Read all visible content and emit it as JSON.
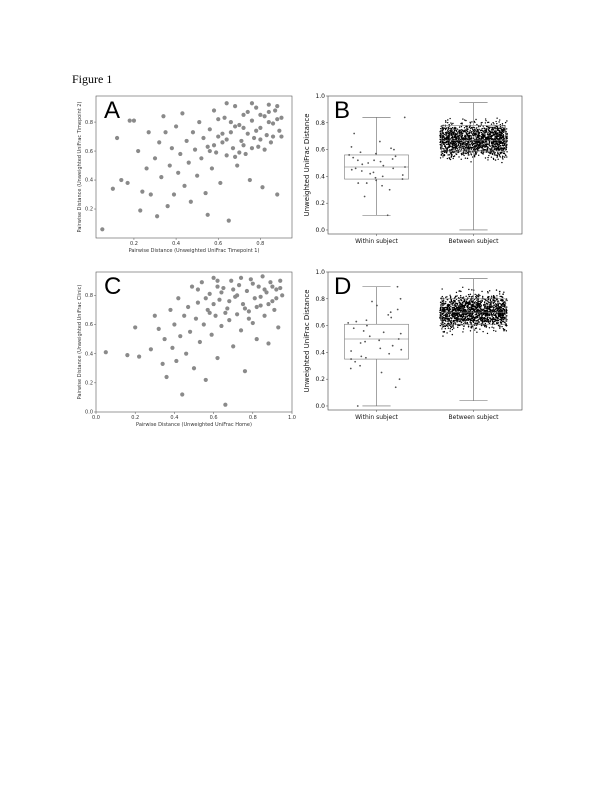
{
  "figure": {
    "title": "Figure 1"
  },
  "chart_data": [
    {
      "panel": "A",
      "type": "scatter",
      "xlabel": "Pairwise Distance (Unweighted UniFrac Timepoint 1)",
      "ylabel": "Pairwise Distance (Unweighted UniFrac Timepoint 2)",
      "xlim": [
        0.02,
        0.95
      ],
      "ylim": [
        0.0,
        0.98
      ],
      "xticks": [
        "0.2",
        "0.4",
        "0.6",
        "0.8"
      ],
      "yticks": [
        "0.2",
        "0.4",
        "0.6",
        "0.8"
      ],
      "color": "#8a8a8a",
      "points": [
        [
          0.05,
          0.06
        ],
        [
          0.1,
          0.34
        ],
        [
          0.12,
          0.69
        ],
        [
          0.14,
          0.4
        ],
        [
          0.17,
          0.38
        ],
        [
          0.18,
          0.81
        ],
        [
          0.2,
          0.81
        ],
        [
          0.22,
          0.6
        ],
        [
          0.23,
          0.19
        ],
        [
          0.24,
          0.32
        ],
        [
          0.26,
          0.48
        ],
        [
          0.27,
          0.73
        ],
        [
          0.28,
          0.3
        ],
        [
          0.3,
          0.55
        ],
        [
          0.31,
          0.15
        ],
        [
          0.32,
          0.66
        ],
        [
          0.33,
          0.42
        ],
        [
          0.34,
          0.84
        ],
        [
          0.35,
          0.73
        ],
        [
          0.36,
          0.22
        ],
        [
          0.37,
          0.5
        ],
        [
          0.38,
          0.62
        ],
        [
          0.39,
          0.3
        ],
        [
          0.4,
          0.77
        ],
        [
          0.41,
          0.45
        ],
        [
          0.42,
          0.58
        ],
        [
          0.43,
          0.86
        ],
        [
          0.44,
          0.36
        ],
        [
          0.45,
          0.67
        ],
        [
          0.46,
          0.52
        ],
        [
          0.47,
          0.25
        ],
        [
          0.48,
          0.73
        ],
        [
          0.49,
          0.61
        ],
        [
          0.5,
          0.43
        ],
        [
          0.51,
          0.8
        ],
        [
          0.52,
          0.55
        ],
        [
          0.53,
          0.69
        ],
        [
          0.54,
          0.31
        ],
        [
          0.55,
          0.63
        ],
        [
          0.55,
          0.16
        ],
        [
          0.56,
          0.75
        ],
        [
          0.57,
          0.48
        ],
        [
          0.58,
          0.88
        ],
        [
          0.59,
          0.59
        ],
        [
          0.6,
          0.7
        ],
        [
          0.61,
          0.38
        ],
        [
          0.62,
          0.66
        ],
        [
          0.63,
          0.83
        ],
        [
          0.64,
          0.57
        ],
        [
          0.65,
          0.12
        ],
        [
          0.66,
          0.73
        ],
        [
          0.67,
          0.62
        ],
        [
          0.68,
          0.91
        ],
        [
          0.69,
          0.5
        ],
        [
          0.7,
          0.78
        ],
        [
          0.71,
          0.67
        ],
        [
          0.72,
          0.85
        ],
        [
          0.73,
          0.58
        ],
        [
          0.74,
          0.72
        ],
        [
          0.75,
          0.4
        ],
        [
          0.76,
          0.81
        ],
        [
          0.77,
          0.69
        ],
        [
          0.78,
          0.9
        ],
        [
          0.79,
          0.63
        ],
        [
          0.8,
          0.76
        ],
        [
          0.81,
          0.35
        ],
        [
          0.82,
          0.84
        ],
        [
          0.83,
          0.71
        ],
        [
          0.84,
          0.92
        ],
        [
          0.85,
          0.66
        ],
        [
          0.86,
          0.79
        ],
        [
          0.87,
          0.88
        ],
        [
          0.88,
          0.3
        ],
        [
          0.89,
          0.74
        ],
        [
          0.9,
          0.83
        ],
        [
          0.58,
          0.64
        ],
        [
          0.62,
          0.72
        ],
        [
          0.66,
          0.8
        ],
        [
          0.7,
          0.59
        ],
        [
          0.74,
          0.87
        ],
        [
          0.78,
          0.74
        ],
        [
          0.82,
          0.61
        ],
        [
          0.86,
          0.7
        ],
        [
          0.64,
          0.93
        ],
        [
          0.68,
          0.77
        ],
        [
          0.72,
          0.64
        ],
        [
          0.76,
          0.93
        ],
        [
          0.8,
          0.85
        ],
        [
          0.84,
          0.8
        ],
        [
          0.88,
          0.82
        ],
        [
          0.56,
          0.6
        ],
        [
          0.6,
          0.82
        ],
        [
          0.64,
          0.68
        ],
        [
          0.68,
          0.56
        ],
        [
          0.72,
          0.76
        ],
        [
          0.76,
          0.62
        ],
        [
          0.8,
          0.68
        ],
        [
          0.84,
          0.87
        ],
        [
          0.88,
          0.91
        ],
        [
          0.9,
          0.7
        ]
      ]
    },
    {
      "panel": "B",
      "type": "box",
      "ylabel": "Unweighted UniFrac Distance",
      "ylim": [
        -0.03,
        1.0
      ],
      "yticks": [
        "0.0",
        "0.2",
        "0.4",
        "0.6",
        "0.8",
        "1.0"
      ],
      "categories": [
        "Within subject",
        "Between subject"
      ],
      "boxes": [
        {
          "q1": 0.38,
          "median": 0.47,
          "q3": 0.56,
          "whisker_low": 0.11,
          "whisker_high": 0.84
        },
        {
          "q1": 0.59,
          "median": 0.67,
          "q3": 0.78,
          "whisker_low": 0.0,
          "whisker_high": 0.95
        }
      ],
      "within_points": [
        0.11,
        0.25,
        0.3,
        0.33,
        0.35,
        0.37,
        0.38,
        0.4,
        0.41,
        0.42,
        0.43,
        0.44,
        0.45,
        0.46,
        0.47,
        0.48,
        0.49,
        0.5,
        0.51,
        0.52,
        0.53,
        0.54,
        0.55,
        0.56,
        0.57,
        0.58,
        0.6,
        0.62,
        0.66,
        0.72,
        0.84,
        0.39,
        0.46,
        0.52,
        0.61,
        0.35
      ],
      "between_distribution": {
        "n": 1500,
        "center": 0.67,
        "spread": 0.12,
        "min": 0.0,
        "max": 0.95
      }
    },
    {
      "panel": "C",
      "type": "scatter",
      "xlabel": "Pairwise Distance (Unweighted UniFrac Home)",
      "ylabel": "Pairwise Distance (Unweighted UniFrac Clinic)",
      "xlim": [
        0.0,
        1.0
      ],
      "ylim": [
        0.0,
        0.96
      ],
      "xticks": [
        "0.0",
        "0.2",
        "0.4",
        "0.6",
        "0.8",
        "1.0"
      ],
      "yticks": [
        "0.0",
        "0.2",
        "0.4",
        "0.6",
        "0.8"
      ],
      "color": "#8a8a8a",
      "points": [
        [
          0.05,
          0.41
        ],
        [
          0.16,
          0.39
        ],
        [
          0.2,
          0.58
        ],
        [
          0.22,
          0.38
        ],
        [
          0.28,
          0.43
        ],
        [
          0.3,
          0.66
        ],
        [
          0.32,
          0.57
        ],
        [
          0.34,
          0.33
        ],
        [
          0.35,
          0.5
        ],
        [
          0.36,
          0.24
        ],
        [
          0.38,
          0.7
        ],
        [
          0.39,
          0.44
        ],
        [
          0.4,
          0.6
        ],
        [
          0.41,
          0.35
        ],
        [
          0.42,
          0.78
        ],
        [
          0.43,
          0.52
        ],
        [
          0.44,
          0.12
        ],
        [
          0.45,
          0.66
        ],
        [
          0.46,
          0.4
        ],
        [
          0.47,
          0.72
        ],
        [
          0.48,
          0.55
        ],
        [
          0.49,
          0.86
        ],
        [
          0.5,
          0.3
        ],
        [
          0.51,
          0.64
        ],
        [
          0.52,
          0.75
        ],
        [
          0.53,
          0.48
        ],
        [
          0.54,
          0.89
        ],
        [
          0.55,
          0.6
        ],
        [
          0.56,
          0.22
        ],
        [
          0.57,
          0.7
        ],
        [
          0.58,
          0.81
        ],
        [
          0.59,
          0.53
        ],
        [
          0.6,
          0.92
        ],
        [
          0.61,
          0.66
        ],
        [
          0.62,
          0.37
        ],
        [
          0.63,
          0.77
        ],
        [
          0.64,
          0.59
        ],
        [
          0.65,
          0.85
        ],
        [
          0.66,
          0.05
        ],
        [
          0.67,
          0.71
        ],
        [
          0.68,
          0.63
        ],
        [
          0.69,
          0.9
        ],
        [
          0.7,
          0.45
        ],
        [
          0.71,
          0.79
        ],
        [
          0.72,
          0.67
        ],
        [
          0.73,
          0.87
        ],
        [
          0.74,
          0.56
        ],
        [
          0.75,
          0.74
        ],
        [
          0.76,
          0.28
        ],
        [
          0.77,
          0.83
        ],
        [
          0.78,
          0.69
        ],
        [
          0.79,
          0.91
        ],
        [
          0.8,
          0.61
        ],
        [
          0.81,
          0.78
        ],
        [
          0.82,
          0.5
        ],
        [
          0.83,
          0.86
        ],
        [
          0.84,
          0.73
        ],
        [
          0.85,
          0.93
        ],
        [
          0.86,
          0.66
        ],
        [
          0.87,
          0.82
        ],
        [
          0.88,
          0.47
        ],
        [
          0.89,
          0.89
        ],
        [
          0.9,
          0.76
        ],
        [
          0.91,
          0.7
        ],
        [
          0.92,
          0.84
        ],
        [
          0.93,
          0.58
        ],
        [
          0.94,
          0.9
        ],
        [
          0.95,
          0.8
        ],
        [
          0.6,
          0.74
        ],
        [
          0.64,
          0.82
        ],
        [
          0.68,
          0.76
        ],
        [
          0.72,
          0.8
        ],
        [
          0.76,
          0.71
        ],
        [
          0.8,
          0.88
        ],
        [
          0.84,
          0.79
        ],
        [
          0.88,
          0.74
        ],
        [
          0.92,
          0.78
        ],
        [
          0.62,
          0.86
        ],
        [
          0.66,
          0.68
        ],
        [
          0.7,
          0.84
        ],
        [
          0.74,
          0.92
        ],
        [
          0.78,
          0.64
        ],
        [
          0.82,
          0.72
        ],
        [
          0.86,
          0.84
        ],
        [
          0.9,
          0.86
        ],
        [
          0.58,
          0.68
        ],
        [
          0.56,
          0.78
        ],
        [
          0.52,
          0.84
        ],
        [
          0.62,
          0.9
        ],
        [
          0.94,
          0.85
        ]
      ]
    },
    {
      "panel": "D",
      "type": "box",
      "ylabel": "Unweighted UniFrac Distance",
      "ylim": [
        -0.03,
        1.0
      ],
      "yticks": [
        "0.0",
        "0.2",
        "0.4",
        "0.6",
        "0.8",
        "1.0"
      ],
      "categories": [
        "Within subject",
        "Between subject"
      ],
      "boxes": [
        {
          "q1": 0.35,
          "median": 0.5,
          "q3": 0.61,
          "whisker_low": 0.0,
          "whisker_high": 0.89
        },
        {
          "q1": 0.61,
          "median": 0.7,
          "q3": 0.8,
          "whisker_low": 0.04,
          "whisker_high": 0.95
        }
      ],
      "within_points": [
        0.0,
        0.14,
        0.2,
        0.25,
        0.28,
        0.3,
        0.33,
        0.35,
        0.37,
        0.39,
        0.41,
        0.43,
        0.45,
        0.47,
        0.49,
        0.5,
        0.52,
        0.54,
        0.56,
        0.58,
        0.6,
        0.62,
        0.64,
        0.66,
        0.68,
        0.7,
        0.72,
        0.75,
        0.78,
        0.8,
        0.89,
        0.42,
        0.55,
        0.63,
        0.36,
        0.48
      ],
      "between_distribution": {
        "n": 1500,
        "center": 0.7,
        "spread": 0.12,
        "min": 0.04,
        "max": 0.95
      }
    }
  ]
}
